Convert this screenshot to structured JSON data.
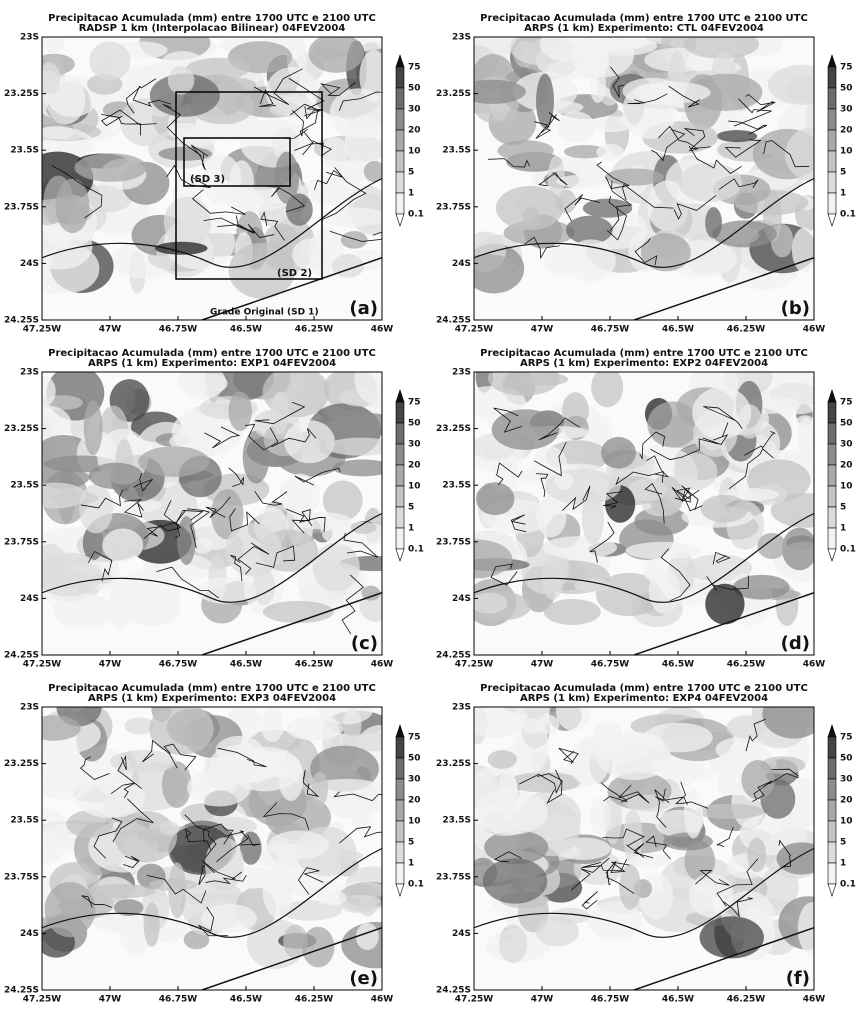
{
  "axes": {
    "xticks": [
      "47.25W",
      "47W",
      "46.75W",
      "46.5W",
      "46.25W",
      "46W"
    ],
    "yticks": [
      "23S",
      "23.25S",
      "23.5S",
      "23.75S",
      "24S",
      "24.25S"
    ]
  },
  "colorbar": [
    "75",
    "50",
    "30",
    "20",
    "10",
    "5",
    "1",
    "0.1"
  ],
  "panels": [
    {
      "title": "Precipitacao Acumulada (mm) entre 1700 UTC e 2100 UTC",
      "subtitle": "RADSP 1 km (Interpolacao Bilinear) 04FEV2004",
      "label": "(a)",
      "annotations": [
        "(SD 3)",
        "(SD 2)",
        "Grade Original (SD 1)"
      ]
    },
    {
      "title": "Precipitacao Acumulada (mm) entre 1700 UTC e 2100 UTC",
      "subtitle": "ARPS (1 km) Experimento: CTL 04FEV2004",
      "label": "(b)"
    },
    {
      "title": "Precipitacao Acumulada (mm) entre 1700 UTC e 2100 UTC",
      "subtitle": "ARPS (1 km) Experimento: EXP1 04FEV2004",
      "label": "(c)"
    },
    {
      "title": "Precipitacao Acumulada (mm) entre 1700 UTC e 2100 UTC",
      "subtitle": "ARPS (1 km) Experimento: EXP2 04FEV2004",
      "label": "(d)"
    },
    {
      "title": "Precipitacao Acumulada (mm) entre 1700 UTC e 2100 UTC",
      "subtitle": "ARPS (1 km) Experimento: EXP3 04FEV2004",
      "label": "(e)"
    },
    {
      "title": "Precipitacao Acumulada (mm) entre 1700 UTC e 2100 UTC",
      "subtitle": "ARPS (1 km) Experimento: EXP4 04FEV2004",
      "label": "(f)"
    }
  ]
}
